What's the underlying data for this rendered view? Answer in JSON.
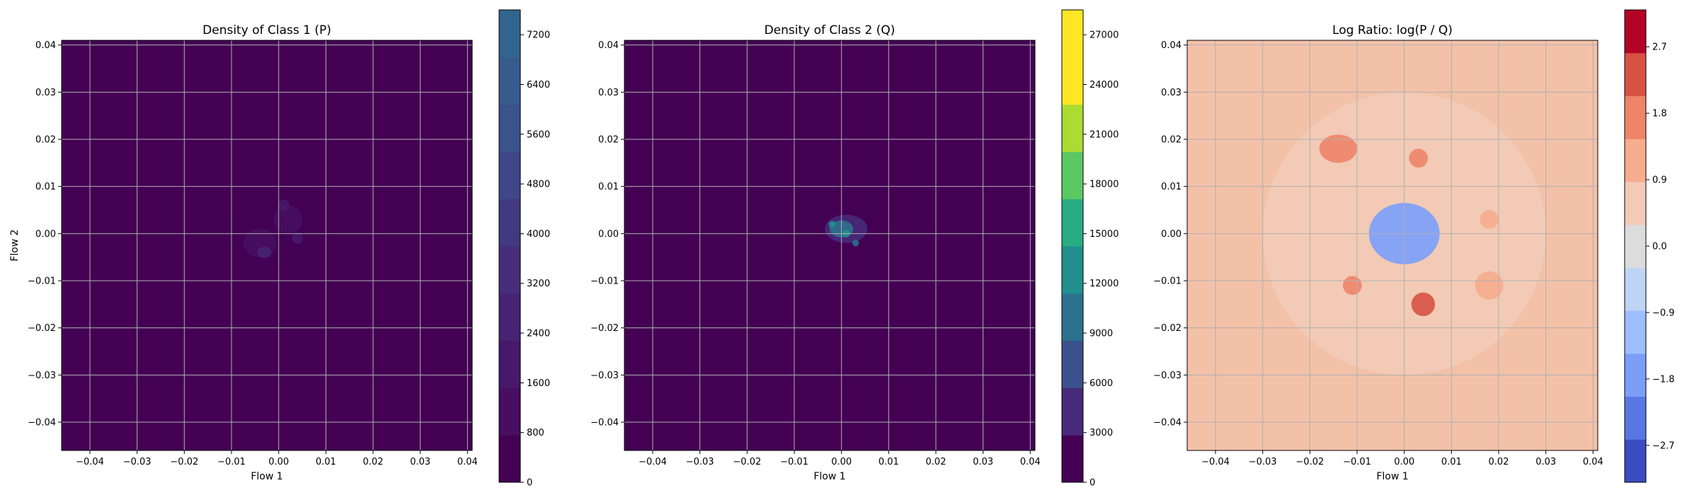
{
  "chart_data": [
    {
      "type": "heatmap",
      "title": "Density of Class 1 (P)",
      "xlabel": "Flow 1",
      "ylabel": "Flow 2",
      "xlim": [
        -0.046,
        0.041
      ],
      "ylim": [
        -0.046,
        0.041
      ],
      "xticks": [
        "−0.04",
        "−0.03",
        "−0.02",
        "−0.01",
        "0.00",
        "0.01",
        "0.02",
        "0.03",
        "0.04"
      ],
      "yticks": [
        "0.04",
        "0.03",
        "0.02",
        "0.01",
        "0.00",
        "−0.01",
        "−0.02",
        "−0.03",
        "−0.04"
      ],
      "grid": true,
      "colormap": "viridis",
      "background_color": "#440154",
      "colorbar": {
        "range": [
          0,
          7600
        ],
        "ticks": [
          "0",
          "800",
          "1600",
          "2400",
          "3200",
          "4000",
          "4800",
          "5600",
          "6400",
          "7200"
        ],
        "tick_values": [
          0,
          800,
          1600,
          2400,
          3200,
          4000,
          4800,
          5600,
          6400,
          7200
        ],
        "colors": [
          "#440154",
          "#470e61",
          "#48186a",
          "#472373",
          "#462d7c",
          "#433882",
          "#3f4788",
          "#3b528b",
          "#375b8d",
          "#32658e"
        ]
      },
      "blobs": [
        {
          "x": -0.002,
          "y": 0.001,
          "sx": 0.0085,
          "sy": 0.0075,
          "v": 700
        },
        {
          "x": -0.004,
          "y": -0.002,
          "sx": 0.0035,
          "sy": 0.003,
          "v": 1400
        },
        {
          "x": 0.002,
          "y": 0.003,
          "sx": 0.003,
          "sy": 0.003,
          "v": 1200
        },
        {
          "x": -0.003,
          "y": -0.004,
          "sx": 0.0015,
          "sy": 0.0012,
          "v": 2400
        },
        {
          "x": 0.001,
          "y": 0.006,
          "sx": 0.0012,
          "sy": 0.0012,
          "v": 2000
        },
        {
          "x": 0.004,
          "y": -0.001,
          "sx": 0.0012,
          "sy": 0.0012,
          "v": 1800
        }
      ]
    },
    {
      "type": "heatmap",
      "title": "Density of Class 2 (Q)",
      "xlabel": "Flow 1",
      "ylabel": "",
      "xlim": [
        -0.046,
        0.041
      ],
      "ylim": [
        -0.046,
        0.041
      ],
      "xticks": [
        "−0.04",
        "−0.03",
        "−0.02",
        "−0.01",
        "0.00",
        "0.01",
        "0.02",
        "0.03",
        "0.04"
      ],
      "yticks": [
        "0.04",
        "0.03",
        "0.02",
        "0.01",
        "0.00",
        "−0.01",
        "−0.02",
        "−0.03",
        "−0.04"
      ],
      "grid": true,
      "colormap": "viridis",
      "background_color": "#440154",
      "colorbar": {
        "range": [
          0,
          28500
        ],
        "ticks": [
          "0",
          "3000",
          "6000",
          "9000",
          "12000",
          "15000",
          "18000",
          "21000",
          "24000",
          "27000"
        ],
        "tick_values": [
          0,
          3000,
          6000,
          9000,
          12000,
          15000,
          18000,
          21000,
          24000,
          27000
        ],
        "colors": [
          "#440154",
          "#472a7a",
          "#3b518b",
          "#2c718e",
          "#21908d",
          "#27ad81",
          "#5cc863",
          "#aadc32",
          "#fde725",
          "#fde725"
        ]
      },
      "blobs": [
        {
          "x": 0.001,
          "y": 0.001,
          "sx": 0.0045,
          "sy": 0.003,
          "v": 4000
        },
        {
          "x": 0.0,
          "y": 0.001,
          "sx": 0.0025,
          "sy": 0.0018,
          "v": 9000
        },
        {
          "x": 0.001,
          "y": 0.0,
          "sx": 0.0008,
          "sy": 0.0008,
          "v": 14000
        },
        {
          "x": -0.002,
          "y": 0.002,
          "sx": 0.0007,
          "sy": 0.0007,
          "v": 12000
        },
        {
          "x": 0.003,
          "y": -0.002,
          "sx": 0.0007,
          "sy": 0.0007,
          "v": 11000
        }
      ]
    },
    {
      "type": "heatmap",
      "title": "Log Ratio: log(P / Q)",
      "xlabel": "Flow 1",
      "ylabel": "",
      "xlim": [
        -0.046,
        0.041
      ],
      "ylim": [
        -0.046,
        0.041
      ],
      "xticks": [
        "−0.04",
        "−0.03",
        "−0.02",
        "−0.01",
        "0.00",
        "0.01",
        "0.02",
        "0.03",
        "0.04"
      ],
      "yticks": [
        "0.04",
        "0.03",
        "0.02",
        "0.01",
        "0.00",
        "−0.01",
        "−0.02",
        "−0.03",
        "−0.04"
      ],
      "grid": true,
      "colormap": "coolwarm",
      "background_color": "#f3c1a8",
      "colorbar": {
        "range": [
          -3.2,
          3.2
        ],
        "ticks": [
          "−2.7",
          "−1.8",
          "−0.9",
          "0.0",
          "0.9",
          "1.8",
          "2.7"
        ],
        "tick_values": [
          -2.7,
          -1.8,
          -0.9,
          0.0,
          0.9,
          1.8,
          2.7
        ],
        "colors": [
          "#3b4cc0",
          "#5977e3",
          "#7b9ff9",
          "#9ebeff",
          "#c0d4f5",
          "#dddcdc",
          "#f2cbb7",
          "#f7ac8e",
          "#ee8468",
          "#d65244",
          "#b40426"
        ]
      },
      "blobs": [
        {
          "x": 0.0,
          "y": 0.0,
          "sx": 0.03,
          "sy": 0.03,
          "v": 0.7
        },
        {
          "x": 0.0,
          "y": 0.0,
          "sx": 0.0075,
          "sy": 0.0065,
          "v": -1.6
        },
        {
          "x": -0.014,
          "y": 0.018,
          "sx": 0.004,
          "sy": 0.003,
          "v": 2.0
        },
        {
          "x": 0.003,
          "y": 0.016,
          "sx": 0.002,
          "sy": 0.002,
          "v": 1.8
        },
        {
          "x": -0.011,
          "y": -0.011,
          "sx": 0.002,
          "sy": 0.002,
          "v": 1.8
        },
        {
          "x": 0.004,
          "y": -0.015,
          "sx": 0.0025,
          "sy": 0.0025,
          "v": 2.1
        },
        {
          "x": 0.018,
          "y": -0.011,
          "sx": 0.003,
          "sy": 0.003,
          "v": 1.3
        },
        {
          "x": 0.018,
          "y": 0.003,
          "sx": 0.002,
          "sy": 0.002,
          "v": 1.0
        }
      ]
    }
  ]
}
